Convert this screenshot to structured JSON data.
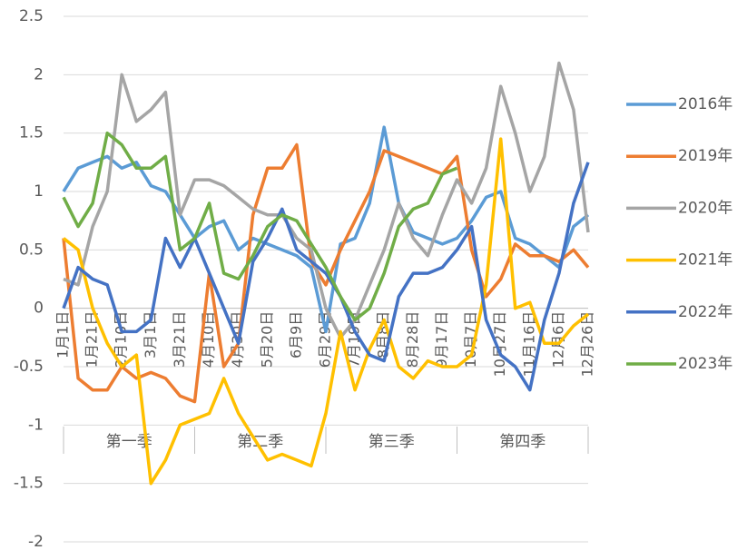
{
  "chart_data": {
    "type": "line",
    "categories": [
      "1月1日",
      null,
      "1月21日",
      null,
      "2月10日",
      null,
      "3月1日",
      null,
      "3月21日",
      null,
      "4月10日",
      null,
      "4月30日",
      null,
      "5月20日",
      null,
      "6月9日",
      null,
      "6月29日",
      null,
      "7月19日",
      null,
      "8月8日",
      null,
      "8月28日",
      null,
      "9月17日",
      null,
      "10月7日",
      null,
      "10月27日",
      null,
      "11月16日",
      null,
      "12月6日",
      null,
      "12月26日"
    ],
    "groups": [
      "第一季",
      "第二季",
      "第三季",
      "第四季"
    ],
    "ylim": [
      -2,
      2.5
    ],
    "yticks": [
      -2,
      -1.5,
      -1,
      -0.5,
      0,
      0.5,
      1,
      1.5,
      2,
      2.5
    ],
    "grid": true,
    "series": [
      {
        "name": "2016年",
        "color": "#5b9bd5",
        "values": [
          1.0,
          1.2,
          1.25,
          1.3,
          1.2,
          1.25,
          1.05,
          1.0,
          0.8,
          0.6,
          0.7,
          0.75,
          0.5,
          0.6,
          0.55,
          0.5,
          0.45,
          0.35,
          -0.2,
          0.55,
          0.6,
          0.9,
          1.55,
          0.9,
          0.65,
          0.6,
          0.55,
          0.6,
          0.75,
          0.95,
          1.0,
          0.6,
          0.55,
          0.45,
          0.35,
          0.7,
          0.8
        ]
      },
      {
        "name": "2019年",
        "color": "#ed7d31",
        "values": [
          0.6,
          -0.6,
          -0.7,
          -0.7,
          -0.5,
          -0.6,
          -0.55,
          -0.6,
          -0.75,
          -0.8,
          0.3,
          -0.5,
          -0.3,
          0.8,
          1.2,
          1.2,
          1.4,
          0.4,
          0.2,
          0.5,
          0.75,
          1.0,
          1.35,
          1.3,
          1.25,
          1.2,
          1.15,
          1.3,
          0.5,
          0.1,
          0.25,
          0.55,
          0.45,
          0.45,
          0.4,
          0.5,
          0.35
        ]
      },
      {
        "name": "2020年",
        "color": "#a5a5a5",
        "values": [
          0.25,
          0.2,
          0.7,
          1.0,
          2.0,
          1.6,
          1.7,
          1.85,
          0.8,
          1.1,
          1.1,
          1.05,
          0.95,
          0.85,
          0.8,
          0.8,
          0.6,
          0.5,
          0.0,
          -0.25,
          -0.1,
          0.2,
          0.5,
          0.9,
          0.6,
          0.45,
          0.8,
          1.1,
          0.9,
          1.2,
          1.9,
          1.5,
          1.0,
          1.3,
          2.1,
          1.7,
          0.65
        ]
      },
      {
        "name": "2021年",
        "color": "#ffc000",
        "values": [
          0.6,
          0.5,
          0.0,
          -0.3,
          -0.5,
          -0.4,
          -1.5,
          -1.3,
          -1.0,
          -0.95,
          -0.9,
          -0.6,
          -0.9,
          -1.1,
          -1.3,
          -1.25,
          -1.3,
          -1.35,
          -0.9,
          -0.2,
          -0.7,
          -0.35,
          -0.1,
          -0.5,
          -0.6,
          -0.45,
          -0.5,
          -0.5,
          -0.4,
          0.2,
          1.45,
          0.0,
          0.05,
          -0.3,
          -0.3,
          -0.15,
          -0.05
        ]
      },
      {
        "name": "2022年",
        "color": "#4472c4",
        "values": [
          0.0,
          0.35,
          0.25,
          0.2,
          -0.2,
          -0.2,
          -0.1,
          0.6,
          0.35,
          0.6,
          0.3,
          0.0,
          -0.3,
          0.4,
          0.6,
          0.85,
          0.5,
          0.4,
          0.3,
          0.1,
          -0.2,
          -0.4,
          -0.45,
          0.1,
          0.3,
          0.3,
          0.35,
          0.5,
          0.7,
          -0.1,
          -0.4,
          -0.5,
          -0.7,
          -0.1,
          0.3,
          0.9,
          1.25
        ]
      },
      {
        "name": "2023年",
        "color": "#70ad47",
        "values": [
          0.95,
          0.7,
          0.9,
          1.5,
          1.4,
          1.2,
          1.2,
          1.3,
          0.5,
          0.6,
          0.9,
          0.3,
          0.25,
          0.45,
          0.7,
          0.8,
          0.75,
          0.55,
          0.35,
          0.1,
          -0.1,
          0.0,
          0.3,
          0.7,
          0.85,
          0.9,
          1.15,
          1.2,
          null,
          null,
          null,
          null,
          null,
          null,
          null,
          null,
          null
        ]
      }
    ]
  }
}
